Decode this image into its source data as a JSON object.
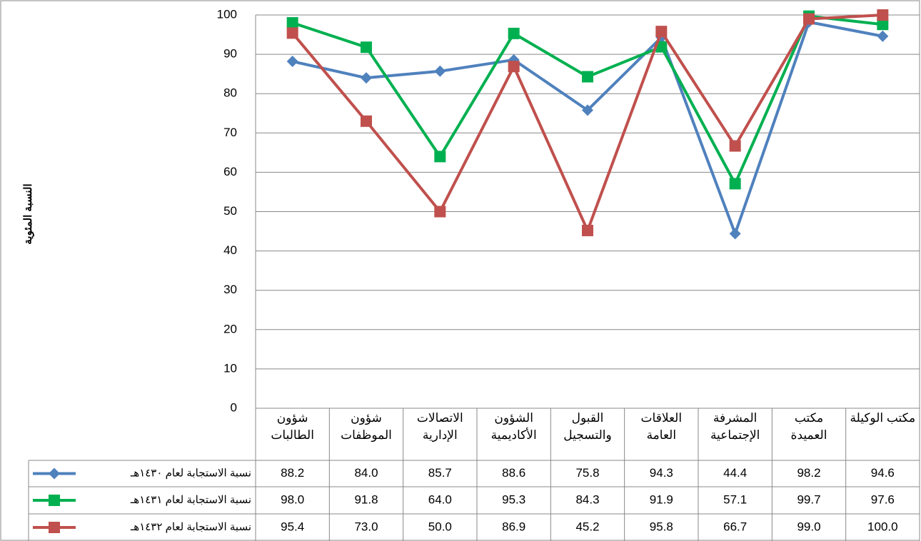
{
  "chart_data": {
    "type": "line",
    "ylabel": "النسبة المئوية",
    "categories": [
      "شؤون الطالبات",
      "شؤون الموظفات",
      "الاتصالات الإدارية",
      "الشؤون الأكاديمية",
      "القبول والتسجيل",
      "العلاقات العامة",
      "المشرفة الإجتماعية",
      "مكتب العميدة",
      "مكتب الوكيلة"
    ],
    "series": [
      {
        "name": "نسبة الاستجابة لعام ١٤٣٠هـ",
        "color": "#4f81bd",
        "marker": "diamond",
        "values": [
          88.2,
          84.0,
          85.7,
          88.6,
          75.8,
          94.3,
          44.4,
          98.2,
          94.6
        ],
        "value_labels": [
          "88.2",
          "84.0",
          "85.7",
          "88.6",
          "75.8",
          "94.3",
          "44.4",
          "98.2",
          "94.6"
        ]
      },
      {
        "name": "نسبة الاستجابة لعام ١٤٣١هـ",
        "color": "#00b050",
        "marker": "square",
        "values": [
          98.0,
          91.8,
          64.0,
          95.3,
          84.3,
          91.9,
          57.1,
          99.7,
          97.6
        ],
        "value_labels": [
          "98.0",
          "91.8",
          "64.0",
          "95.3",
          "84.3",
          "91.9",
          "57.1",
          "99.7",
          "97.6"
        ]
      },
      {
        "name": "نسبة الاستجابة لعام ١٤٣٢هـ",
        "color": "#c0504d",
        "marker": "square",
        "values": [
          95.4,
          73.0,
          50.0,
          86.9,
          45.2,
          95.8,
          66.7,
          99.0,
          100.0
        ],
        "value_labels": [
          "95.4",
          "73.0",
          "50.0",
          "86.9",
          "45.2",
          "95.8",
          "66.7",
          "99.0",
          "100.0"
        ]
      }
    ],
    "ylim": [
      0,
      100
    ],
    "yticks": [
      0,
      10,
      20,
      30,
      40,
      50,
      60,
      70,
      80,
      90,
      100
    ],
    "grid": true
  }
}
